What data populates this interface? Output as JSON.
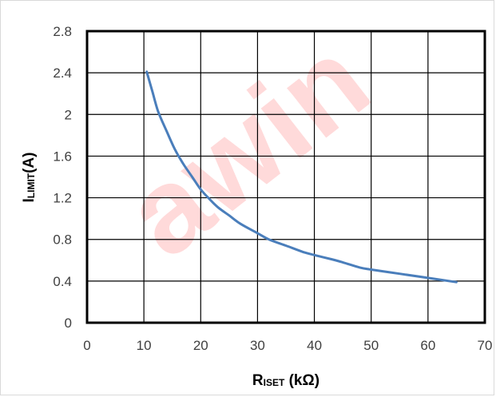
{
  "chart_data": {
    "type": "line",
    "title": "",
    "xlabel": {
      "main": "R",
      "sub": "ISET",
      "unit": " (kΩ)"
    },
    "ylabel": {
      "main": "I",
      "sub": "LIMIT",
      "unit": "(A)"
    },
    "xlim": [
      0,
      70
    ],
    "ylim": [
      0,
      2.8
    ],
    "xticks": [
      "0",
      "10",
      "20",
      "30",
      "40",
      "50",
      "60",
      "70"
    ],
    "yticks": [
      "0",
      "0.4",
      "0.8",
      "1.2",
      "1.6",
      "2",
      "2.4",
      "2.8"
    ],
    "grid": true,
    "legend": "none",
    "series": [
      {
        "color": "#4a7ebb",
        "x": [
          10.5,
          11.5,
          12.5,
          14,
          15.5,
          17,
          18.5,
          20,
          21.5,
          23,
          25,
          27,
          30,
          32,
          35,
          38,
          40,
          43,
          45,
          48,
          50,
          55,
          60,
          65
        ],
        "y": [
          2.41,
          2.22,
          2.03,
          1.84,
          1.66,
          1.52,
          1.4,
          1.28,
          1.19,
          1.11,
          1.03,
          0.95,
          0.86,
          0.8,
          0.74,
          0.68,
          0.65,
          0.61,
          0.58,
          0.53,
          0.51,
          0.47,
          0.43,
          0.39
        ]
      }
    ]
  },
  "watermark": "awin"
}
